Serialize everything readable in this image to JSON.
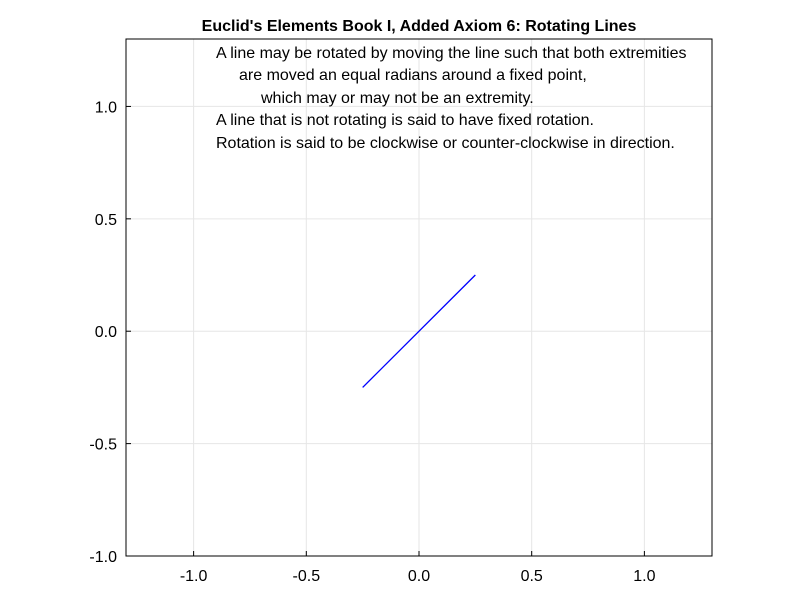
{
  "chart_data": {
    "type": "line",
    "title": "Euclid's Elements Book I, Added Axiom 6: Rotating Lines",
    "xlabel": "",
    "ylabel": "",
    "xlim": [
      -1.3,
      1.3
    ],
    "ylim": [
      -1.0,
      1.3
    ],
    "grid": true,
    "x_ticks": [
      -1.0,
      -0.5,
      0.0,
      0.5,
      1.0
    ],
    "x_tick_labels": [
      "-1.0",
      "-0.5",
      "0.0",
      "0.5",
      "1.0"
    ],
    "y_ticks": [
      -1.0,
      -0.5,
      0.0,
      0.5,
      1.0
    ],
    "y_tick_labels": [
      "-1.0",
      "-0.5",
      "0.0",
      "0.5",
      "1.0"
    ],
    "series": [
      {
        "color": "#0000ff",
        "x": [
          -0.25,
          0.25
        ],
        "y": [
          -0.25,
          0.25
        ]
      }
    ],
    "annotation": {
      "lines": [
        "A line may be rotated by moving the line such that both extremities",
        "are moved an equal radians around a fixed point,",
        "which may or may not be an extremity.",
        "A line that is not rotating is said to have fixed rotation.",
        "Rotation is said to be clockwise or counter-clockwise in direction."
      ]
    }
  }
}
